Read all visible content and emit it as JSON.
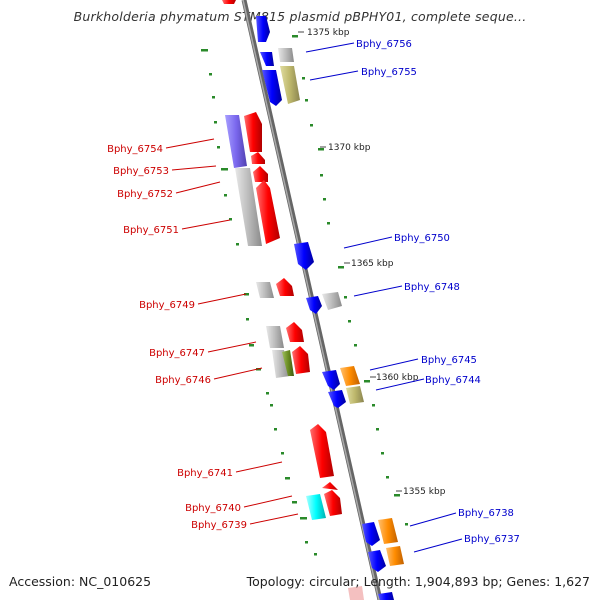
{
  "title": "Burkholderia phymatum STM815 plasmid pBPHY01, complete seque...",
  "accession": "Accession: NC_010625",
  "summary": "Topology: circular; Length: 1,904,893 bp; Genes: 1,627",
  "ticks": [
    "1375 kbp",
    "1370 kbp",
    "1365 kbp",
    "1360 kbp",
    "1355 kbp"
  ],
  "genes_left": [
    "Bphy_6754",
    "Bphy_6753",
    "Bphy_6752",
    "Bphy_6751",
    "Bphy_6749",
    "Bphy_6747",
    "Bphy_6746",
    "Bphy_6741",
    "Bphy_6740",
    "Bphy_6739"
  ],
  "genes_right": [
    "Bphy_6756",
    "Bphy_6755",
    "Bphy_6750",
    "Bphy_6748",
    "Bphy_6745",
    "Bphy_6744",
    "Bphy_6738",
    "Bphy_6737"
  ],
  "colors": {
    "forward": "#ff0000",
    "reverse": "#0000ff",
    "forward_label": "#cc0000",
    "reverse_label": "#0000cc",
    "backbone": "#888888",
    "gc_skew": "#2a8a2a",
    "gray_feature": "#bbbbbb",
    "khaki_feature": "#bdb76b",
    "orange_feature": "#ff8c00",
    "cyan_feature": "#00ffff",
    "slate_feature": "#7b68ee",
    "olive_feature": "#6b8e23"
  }
}
